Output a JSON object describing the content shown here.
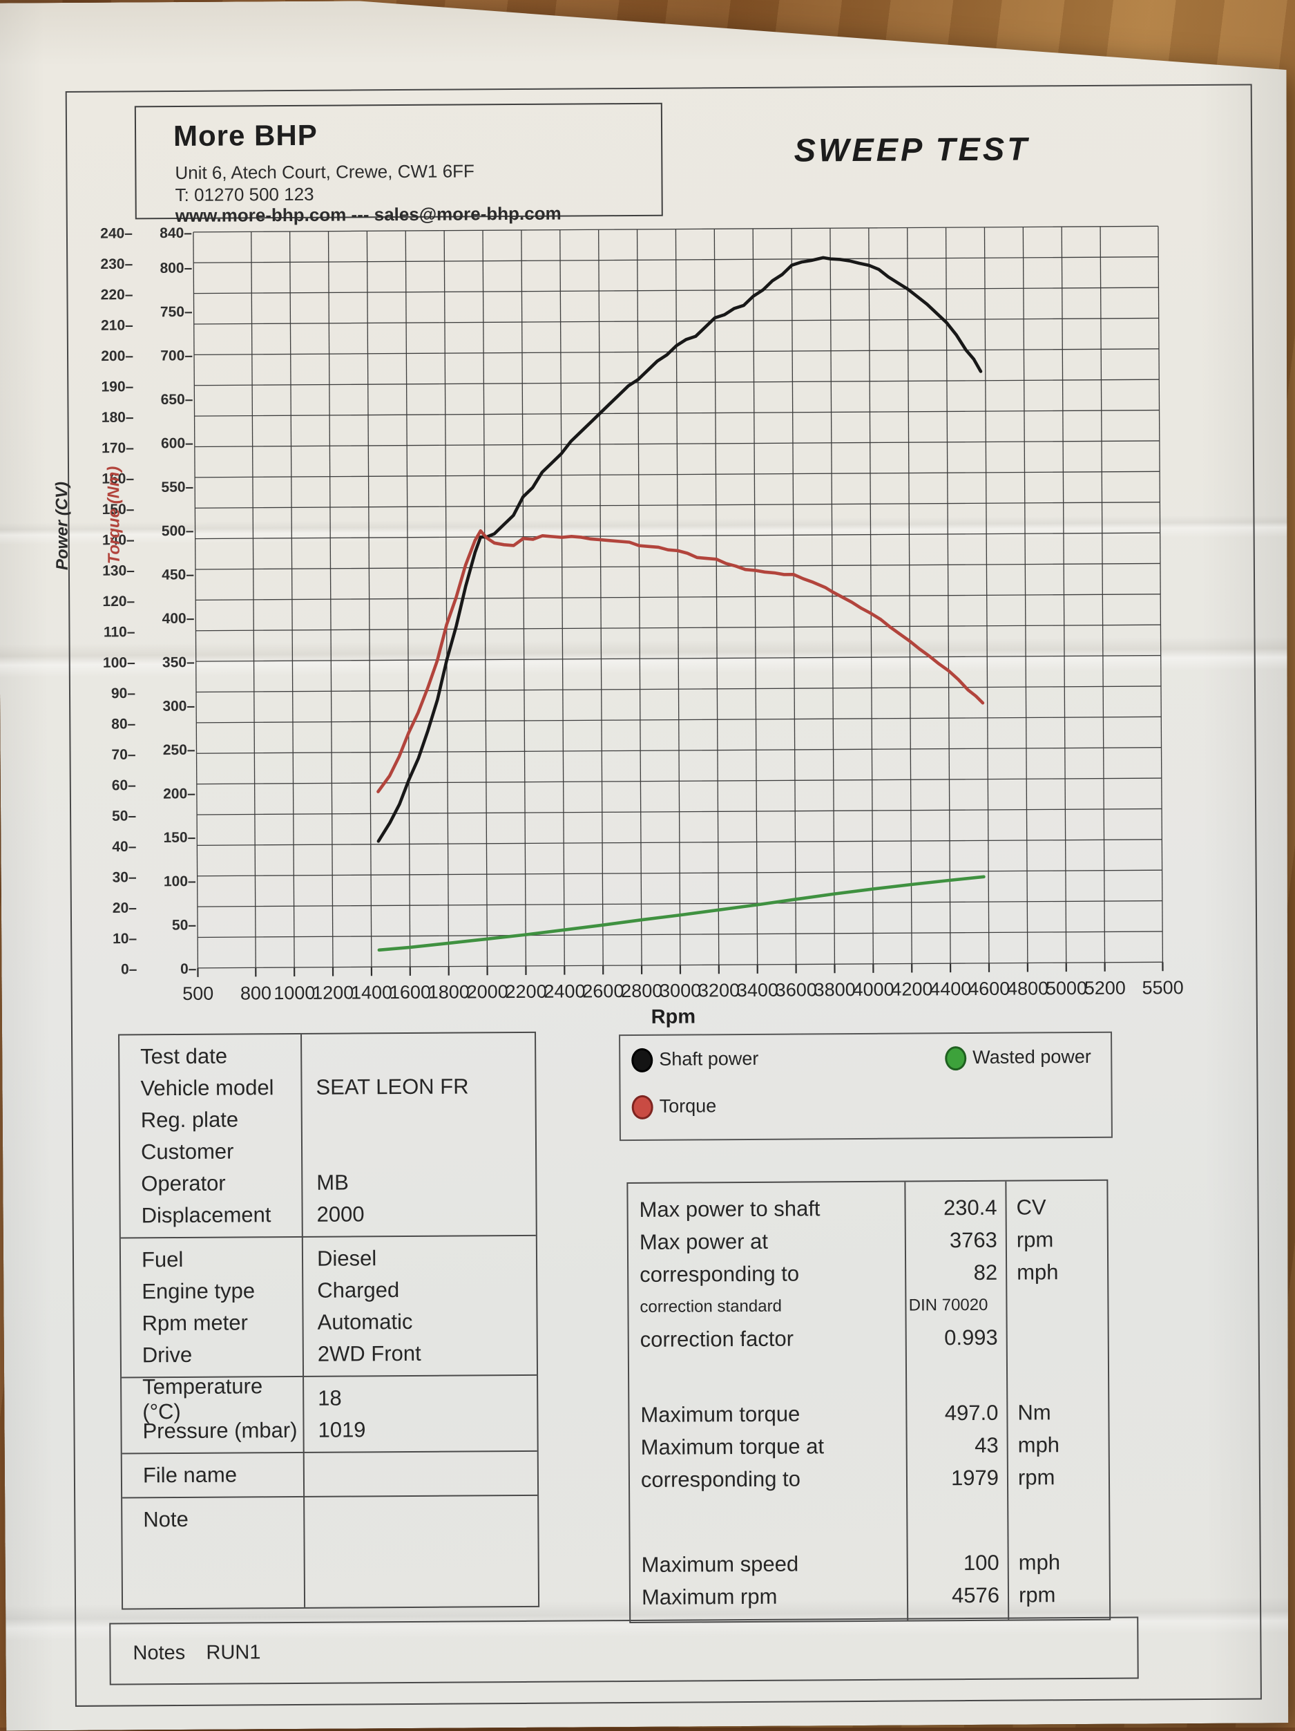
{
  "header": {
    "company": "More BHP",
    "address": "Unit 6, Atech Court, Crewe, CW1 6FF",
    "phone": "T: 01270 500 123",
    "web": "www.more-bhp.com --- sales@more-bhp.com",
    "title": "SWEEP TEST"
  },
  "chart_data": {
    "type": "line",
    "xlabel": "Rpm",
    "x_range": [
      500,
      5500
    ],
    "x_ticks": [
      500,
      800,
      1000,
      1200,
      1400,
      1600,
      1800,
      2000,
      2200,
      2400,
      2600,
      2800,
      3000,
      3200,
      3400,
      3600,
      3800,
      4000,
      4200,
      4400,
      4600,
      4800,
      5000,
      5200,
      5500
    ],
    "left_axis": {
      "label": "Power (CV)",
      "range": [
        0,
        240
      ],
      "ticks": [
        0,
        10,
        20,
        30,
        40,
        50,
        60,
        70,
        80,
        90,
        100,
        110,
        120,
        130,
        140,
        150,
        160,
        170,
        180,
        190,
        200,
        210,
        220,
        230,
        240
      ],
      "color": "#2b2b2b"
    },
    "torque_axis": {
      "label": "Torque (Nm)",
      "range": [
        0,
        840
      ],
      "ticks": [
        0,
        50,
        100,
        150,
        200,
        250,
        300,
        350,
        400,
        450,
        500,
        550,
        600,
        650,
        700,
        750,
        800,
        840
      ],
      "color": "#b2443c"
    },
    "grid": true,
    "legend_position": "below",
    "series": [
      {
        "name": "Shaft power",
        "axis": "power",
        "color": "#181818",
        "points": [
          [
            1440,
            41
          ],
          [
            1500,
            47
          ],
          [
            1550,
            53
          ],
          [
            1600,
            61
          ],
          [
            1650,
            68
          ],
          [
            1700,
            77
          ],
          [
            1750,
            87
          ],
          [
            1800,
            100
          ],
          [
            1850,
            111
          ],
          [
            1900,
            124
          ],
          [
            1950,
            135
          ],
          [
            1979,
            140
          ],
          [
            2010,
            140
          ],
          [
            2050,
            141
          ],
          [
            2100,
            144
          ],
          [
            2150,
            147
          ],
          [
            2200,
            153
          ],
          [
            2250,
            156
          ],
          [
            2300,
            161
          ],
          [
            2350,
            164
          ],
          [
            2400,
            167
          ],
          [
            2450,
            171
          ],
          [
            2500,
            174
          ],
          [
            2550,
            177
          ],
          [
            2600,
            180
          ],
          [
            2650,
            183
          ],
          [
            2700,
            186
          ],
          [
            2750,
            189
          ],
          [
            2800,
            191
          ],
          [
            2850,
            194
          ],
          [
            2900,
            197
          ],
          [
            2950,
            199
          ],
          [
            3000,
            202
          ],
          [
            3050,
            204
          ],
          [
            3100,
            205
          ],
          [
            3150,
            208
          ],
          [
            3200,
            211
          ],
          [
            3250,
            212
          ],
          [
            3300,
            214
          ],
          [
            3350,
            215
          ],
          [
            3400,
            218
          ],
          [
            3450,
            220
          ],
          [
            3500,
            223
          ],
          [
            3550,
            225
          ],
          [
            3600,
            228
          ],
          [
            3650,
            229
          ],
          [
            3700,
            229.5
          ],
          [
            3763,
            230.4
          ],
          [
            3800,
            230
          ],
          [
            3850,
            229.8
          ],
          [
            3900,
            229.3
          ],
          [
            3950,
            228.5
          ],
          [
            4000,
            227.8
          ],
          [
            4050,
            226.5
          ],
          [
            4100,
            224
          ],
          [
            4150,
            222
          ],
          [
            4200,
            220
          ],
          [
            4250,
            217.5
          ],
          [
            4300,
            215
          ],
          [
            4350,
            212
          ],
          [
            4400,
            209
          ],
          [
            4450,
            205
          ],
          [
            4500,
            200
          ],
          [
            4540,
            197
          ],
          [
            4576,
            193
          ]
        ]
      },
      {
        "name": "Torque",
        "axis": "torque",
        "color": "#b2443c",
        "points": [
          [
            1440,
            200
          ],
          [
            1500,
            218
          ],
          [
            1550,
            240
          ],
          [
            1600,
            267
          ],
          [
            1650,
            290
          ],
          [
            1700,
            318
          ],
          [
            1750,
            349
          ],
          [
            1800,
            390
          ],
          [
            1850,
            421
          ],
          [
            1900,
            458
          ],
          [
            1950,
            486
          ],
          [
            1979,
            497
          ],
          [
            2010,
            489
          ],
          [
            2050,
            483
          ],
          [
            2100,
            481
          ],
          [
            2150,
            480
          ],
          [
            2200,
            488
          ],
          [
            2250,
            487
          ],
          [
            2300,
            491
          ],
          [
            2350,
            490
          ],
          [
            2400,
            489
          ],
          [
            2450,
            490
          ],
          [
            2500,
            489
          ],
          [
            2550,
            487
          ],
          [
            2600,
            486
          ],
          [
            2650,
            485
          ],
          [
            2700,
            484
          ],
          [
            2750,
            483
          ],
          [
            2800,
            479
          ],
          [
            2850,
            478
          ],
          [
            2900,
            477
          ],
          [
            2950,
            474
          ],
          [
            3000,
            473
          ],
          [
            3050,
            470
          ],
          [
            3100,
            465
          ],
          [
            3150,
            464
          ],
          [
            3200,
            463
          ],
          [
            3250,
            458
          ],
          [
            3300,
            455
          ],
          [
            3350,
            451
          ],
          [
            3400,
            450
          ],
          [
            3450,
            448
          ],
          [
            3500,
            447
          ],
          [
            3550,
            445
          ],
          [
            3600,
            445
          ],
          [
            3650,
            440
          ],
          [
            3700,
            436
          ],
          [
            3763,
            430
          ],
          [
            3800,
            425
          ],
          [
            3850,
            419
          ],
          [
            3900,
            413
          ],
          [
            3950,
            406
          ],
          [
            4000,
            400
          ],
          [
            4050,
            393
          ],
          [
            4100,
            384
          ],
          [
            4150,
            376
          ],
          [
            4200,
            368
          ],
          [
            4250,
            359
          ],
          [
            4300,
            351
          ],
          [
            4350,
            342
          ],
          [
            4400,
            334
          ],
          [
            4450,
            324
          ],
          [
            4500,
            312
          ],
          [
            4540,
            305
          ],
          [
            4576,
            297
          ]
        ]
      },
      {
        "name": "Wasted power",
        "axis": "power",
        "color": "#3f9140",
        "points": [
          [
            1440,
            5.5
          ],
          [
            1600,
            6.3
          ],
          [
            1800,
            7.6
          ],
          [
            2000,
            8.9
          ],
          [
            2200,
            10.2
          ],
          [
            2400,
            11.7
          ],
          [
            2600,
            13.2
          ],
          [
            2800,
            14.8
          ],
          [
            3000,
            16.3
          ],
          [
            3200,
            17.9
          ],
          [
            3400,
            19.5
          ],
          [
            3600,
            21.2
          ],
          [
            3800,
            22.9
          ],
          [
            4000,
            24.4
          ],
          [
            4200,
            25.8
          ],
          [
            4400,
            27.1
          ],
          [
            4576,
            28.2
          ]
        ]
      }
    ]
  },
  "legend": {
    "items": [
      {
        "label": "Shaft power",
        "color": "#141414",
        "ring": "#000000"
      },
      {
        "label": "Torque",
        "color": "#c94b43",
        "ring": "#7e2420"
      },
      {
        "label": "Wasted power",
        "color": "#3da23b",
        "ring": "#1f6020"
      }
    ]
  },
  "info_table": {
    "groups": [
      {
        "rows": [
          {
            "label": "Test date",
            "value": ""
          },
          {
            "label": "Vehicle model",
            "value": "SEAT LEON FR"
          },
          {
            "label": "Reg. plate",
            "value": ""
          },
          {
            "label": "Customer",
            "value": ""
          },
          {
            "label": "Operator",
            "value": "MB"
          },
          {
            "label": "Displacement",
            "value": "2000"
          }
        ]
      },
      {
        "rows": [
          {
            "label": "Fuel",
            "value": "Diesel"
          },
          {
            "label": "Engine type",
            "value": "Charged"
          },
          {
            "label": "Rpm meter",
            "value": "Automatic"
          },
          {
            "label": "Drive",
            "value": "2WD Front"
          }
        ]
      },
      {
        "rows": [
          {
            "label": "Temperature (°C)",
            "value": "18"
          },
          {
            "label": "Pressure (mbar)",
            "value": "1019"
          }
        ]
      },
      {
        "rows": [
          {
            "label": "File name",
            "value": ""
          }
        ]
      },
      {
        "rows": [
          {
            "label": "Note",
            "value": ""
          }
        ]
      }
    ]
  },
  "results_table": {
    "sections": [
      [
        {
          "label": "Max power to shaft",
          "value": "230.4",
          "unit": "CV"
        },
        {
          "label": "Max power at",
          "value": "3763",
          "unit": "rpm"
        },
        {
          "label": "corresponding to",
          "value": "82",
          "unit": "mph"
        },
        {
          "label": "correction standard",
          "value": "DIN 70020",
          "unit": "",
          "small": true
        },
        {
          "label": "correction factor",
          "value": "0.993",
          "unit": ""
        }
      ],
      [
        {
          "label": "Maximum torque",
          "value": "497.0",
          "unit": "Nm"
        },
        {
          "label": "Maximum torque at",
          "value": "43",
          "unit": "mph"
        },
        {
          "label": "corresponding to",
          "value": "1979",
          "unit": "rpm"
        }
      ],
      [
        {
          "label": "Maximum speed",
          "value": "100",
          "unit": "mph"
        },
        {
          "label": "Maximum rpm",
          "value": "4576",
          "unit": "rpm"
        }
      ]
    ]
  },
  "notes": {
    "label": "Notes",
    "value": "RUN1"
  }
}
